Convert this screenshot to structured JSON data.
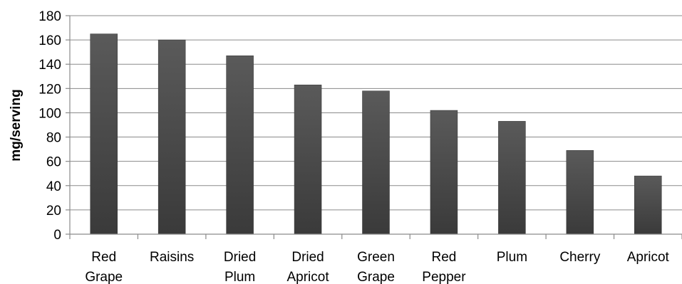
{
  "chart_data": {
    "type": "bar",
    "title": "",
    "xlabel": "",
    "ylabel": "mg/serving",
    "ylim": [
      0,
      180
    ],
    "yticks": [
      0,
      20,
      40,
      60,
      80,
      100,
      120,
      140,
      160,
      180
    ],
    "grid": true,
    "legend": "none",
    "categories": [
      [
        "Red",
        "Grape"
      ],
      [
        "Raisins"
      ],
      [
        "Dried",
        "Plum"
      ],
      [
        "Dried",
        "Apricot"
      ],
      [
        "Green",
        "Grape"
      ],
      [
        "Red",
        "Pepper"
      ],
      [
        "Plum"
      ],
      [
        "Cherry"
      ],
      [
        "Apricot"
      ]
    ],
    "values": [
      165,
      160,
      147,
      123,
      118,
      102,
      93,
      69,
      48
    ],
    "bar_color_top": "#5a5a5a",
    "bar_color_bottom": "#3a3a3a"
  }
}
